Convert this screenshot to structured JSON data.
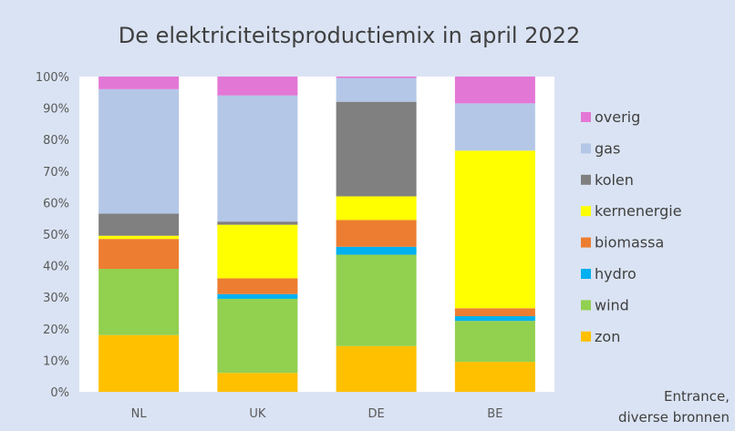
{
  "chart_data": {
    "type": "bar",
    "stacked": true,
    "title": "De elektriciteitsproductiemix in april 2022",
    "categories": [
      "NL",
      "UK",
      "DE",
      "BE"
    ],
    "ylim": [
      0,
      100
    ],
    "yticks": [
      "0%",
      "10%",
      "20%",
      "30%",
      "40%",
      "50%",
      "60%",
      "70%",
      "80%",
      "90%",
      "100%"
    ],
    "grid": false,
    "legend_position": "right",
    "series": [
      {
        "name": "zon",
        "color": "#ffc000",
        "values": [
          18,
          6,
          14.5,
          9.5
        ]
      },
      {
        "name": "wind",
        "color": "#92d050",
        "values": [
          21,
          23.5,
          29,
          13
        ]
      },
      {
        "name": "hydro",
        "color": "#00b0f0",
        "values": [
          0,
          1.5,
          2.5,
          1.5
        ]
      },
      {
        "name": "biomassa",
        "color": "#ed7d31",
        "values": [
          9.5,
          5,
          8.5,
          2.5
        ]
      },
      {
        "name": "kernenergie",
        "color": "#ffff00",
        "values": [
          1,
          17,
          7.5,
          50
        ]
      },
      {
        "name": "kolen",
        "color": "#808080",
        "values": [
          7,
          1,
          30,
          0
        ]
      },
      {
        "name": "gas",
        "color": "#b4c7e7",
        "values": [
          39.5,
          40,
          7.5,
          15
        ]
      },
      {
        "name": "overig",
        "color": "#e377d6",
        "values": [
          4,
          6,
          0.5,
          8.5
        ]
      }
    ],
    "source": [
      "Entrance,",
      "diverse bronnen"
    ]
  }
}
